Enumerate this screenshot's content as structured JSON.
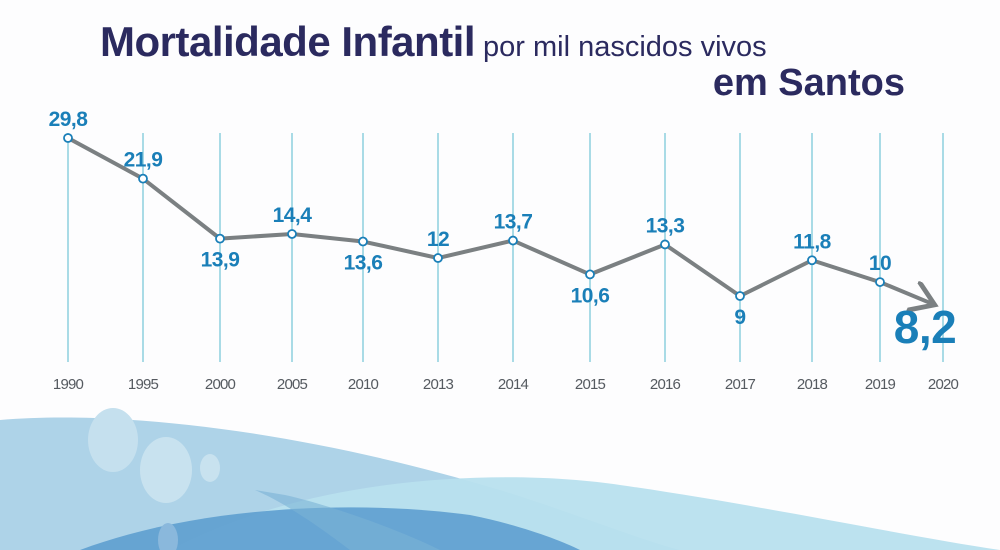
{
  "chart_data": {
    "type": "line",
    "title": "Mortalidade Infantil",
    "subtitle": "por mil nascidos vivos",
    "title_line2": "em Santos",
    "categories": [
      "1990",
      "1995",
      "2000",
      "2005",
      "2010",
      "2013",
      "2014",
      "2015",
      "2016",
      "2017",
      "2018",
      "2019",
      "2020"
    ],
    "values": [
      29.8,
      21.9,
      13.9,
      14.4,
      13.6,
      12,
      13.7,
      10.6,
      13.3,
      9,
      11.8,
      10,
      8.2
    ],
    "data_labels": [
      "29,8",
      "21,9",
      "13,9",
      "14,4",
      "13,6",
      "12",
      "13,7",
      "10,6",
      "13,3",
      "9",
      "11,8",
      "10",
      "8,2"
    ],
    "label_positions": [
      "above",
      "above",
      "below",
      "above",
      "below",
      "above",
      "above",
      "below",
      "above",
      "below",
      "above",
      "above",
      "below"
    ],
    "last_point_style": "arrow-highlighted",
    "grid": "vertical",
    "colors": {
      "title": "#2b2a5f",
      "labels": "#1a7fb8",
      "line": "#7b8082",
      "grid": "#a9dbe6",
      "ticks": "#555a60"
    }
  }
}
